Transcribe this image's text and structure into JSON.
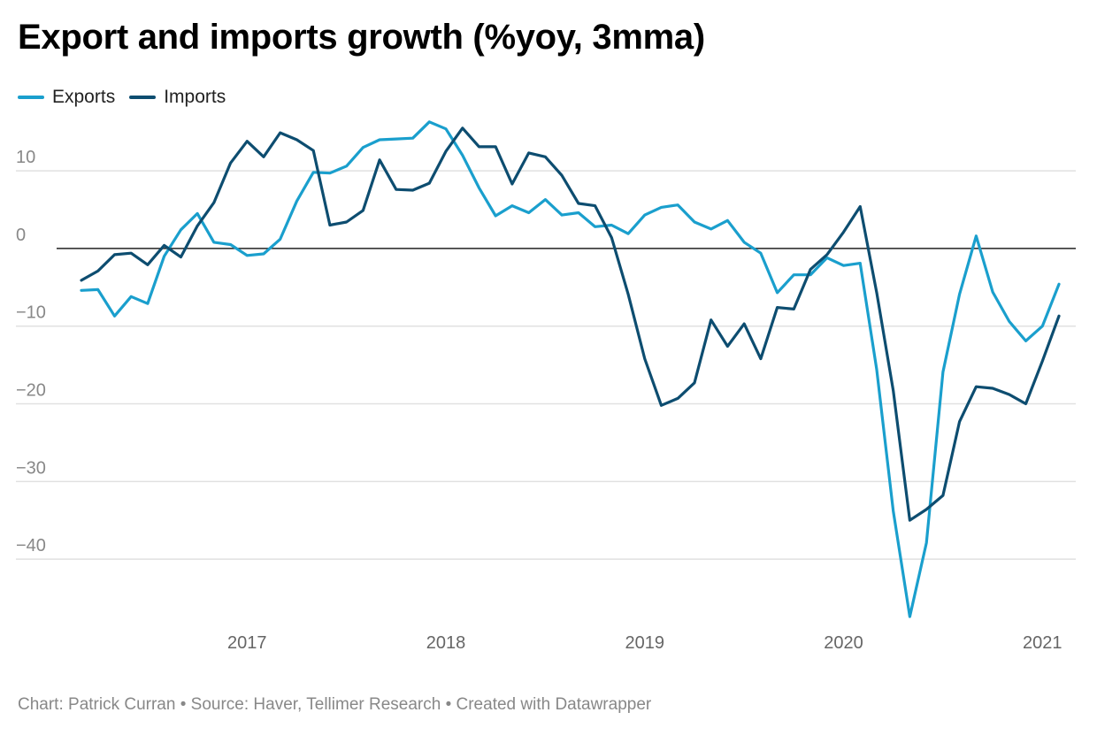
{
  "title": "Export and imports growth (%yoy, 3mma)",
  "legend": [
    {
      "name": "Exports",
      "color": "#1a9fcd"
    },
    {
      "name": "Imports",
      "color": "#0d4d70"
    }
  ],
  "footer": "Chart: Patrick Curran • Source: Haver, Tellimer Research • Created with Datawrapper",
  "chart_data": {
    "type": "line",
    "title": "Export and imports growth (%yoy, 3mma)",
    "xlabel": "",
    "ylabel": "",
    "ylim": [
      -47.5,
      16.5
    ],
    "yticks": [
      10,
      0,
      -10,
      -20,
      -30,
      -40
    ],
    "ytick_labels": [
      "10",
      "0",
      "−10",
      "−20",
      "−30",
      "−40"
    ],
    "xticks": [
      {
        "label": "2017",
        "index": 10
      },
      {
        "label": "2018",
        "index": 22
      },
      {
        "label": "2019",
        "index": 34
      },
      {
        "label": "2020",
        "index": 46
      },
      {
        "label": "2021",
        "index": 58
      }
    ],
    "grid": true,
    "zero_line": true,
    "legend_position": "top-left",
    "x_start": "2016-03",
    "x_frequency": "monthly",
    "series": [
      {
        "name": "Exports",
        "color": "#1a9fcd",
        "values": [
          -5.4,
          -5.3,
          -8.7,
          -6.2,
          -7.1,
          -1.0,
          2.4,
          4.5,
          0.8,
          0.5,
          -0.9,
          -0.7,
          1.2,
          6.1,
          9.8,
          9.7,
          10.6,
          13.0,
          14.0,
          14.1,
          14.2,
          16.3,
          15.4,
          12.0,
          7.8,
          4.2,
          5.5,
          4.6,
          6.3,
          4.3,
          4.6,
          2.8,
          3.0,
          1.9,
          4.3,
          5.3,
          5.6,
          3.4,
          2.5,
          3.6,
          0.8,
          -0.6,
          -5.7,
          -3.4,
          -3.4,
          -1.2,
          -2.2,
          -1.9,
          -15.6,
          -33.8,
          -47.4,
          -37.9,
          -15.9,
          -5.9,
          1.6,
          -5.6,
          -9.4,
          -11.9,
          -10.0,
          -4.6
        ]
      },
      {
        "name": "Imports",
        "color": "#0d4d70",
        "values": [
          -4.1,
          -2.9,
          -0.8,
          -0.6,
          -2.1,
          0.4,
          -1.1,
          2.9,
          5.9,
          11.0,
          13.8,
          11.8,
          14.9,
          14.0,
          12.6,
          3.0,
          3.4,
          4.9,
          11.4,
          7.6,
          7.5,
          8.4,
          12.5,
          15.5,
          13.1,
          13.1,
          8.3,
          12.3,
          11.8,
          9.4,
          5.8,
          5.5,
          1.4,
          -5.9,
          -14.2,
          -20.2,
          -19.3,
          -17.3,
          -9.2,
          -12.6,
          -9.7,
          -14.2,
          -7.6,
          -7.8,
          -2.7,
          -0.8,
          2.1,
          5.4,
          -5.7,
          -18.3,
          -35.0,
          -33.6,
          -31.8,
          -22.3,
          -17.8,
          -18.0,
          -18.8,
          -20.0,
          -14.5,
          -8.7
        ]
      }
    ]
  }
}
